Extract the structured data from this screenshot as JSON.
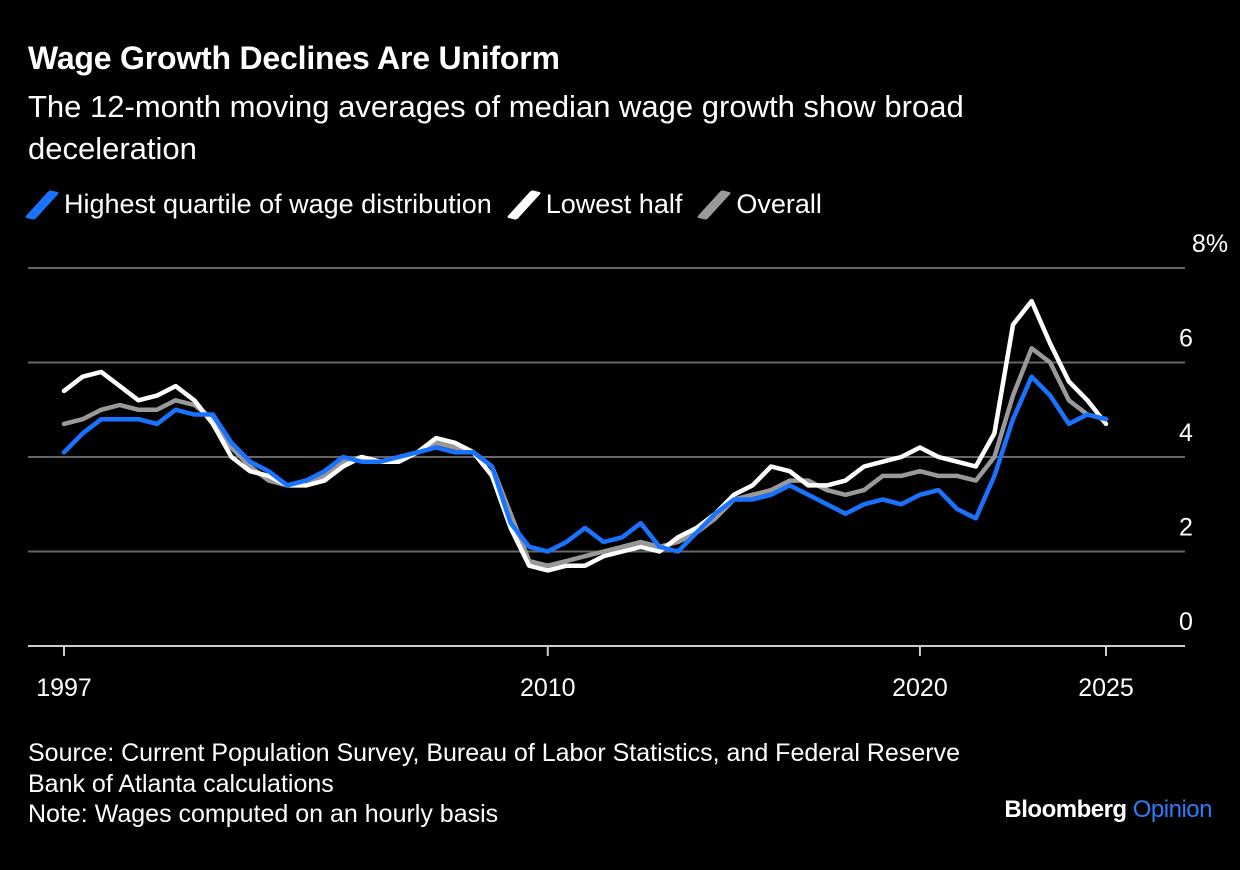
{
  "title": "Wage Growth Declines Are Uniform",
  "subtitle": "The 12-month moving averages of median wage growth show broad deceleration",
  "source": "Source: Current Population Survey, Bureau of Labor Statistics, and Federal Reserve Bank of Atlanta calculations",
  "note": "Note: Wages computed on an hourly basis",
  "brand": {
    "name": "Bloomberg",
    "product": "Opinion"
  },
  "colors": {
    "background": "#000000",
    "highest": "#1a73ff",
    "lowest": "#ffffff",
    "overall": "#999999",
    "grid": "#666666"
  },
  "chart_data": {
    "type": "line",
    "title": "Wage Growth Declines Are Uniform",
    "ylabel": "",
    "xlabel": "",
    "ylim": [
      0,
      8
    ],
    "xlim": [
      1996,
      2027
    ],
    "y_ticks": [
      "0",
      "2",
      "4",
      "6",
      "8%"
    ],
    "x_ticks": [
      "1997",
      "2010",
      "2020",
      "2025"
    ],
    "x_tick_values": [
      1997,
      2010,
      2020,
      2025
    ],
    "legend_position": "top-left",
    "series": [
      {
        "name": "Overall",
        "color": "#999999",
        "x": [
          1997.0,
          1997.5,
          1998.0,
          1998.5,
          1999.0,
          1999.5,
          2000.0,
          2000.5,
          2001.0,
          2001.5,
          2002.0,
          2002.5,
          2003.0,
          2003.5,
          2004.0,
          2004.5,
          2005.0,
          2005.5,
          2006.0,
          2006.5,
          2007.0,
          2007.5,
          2008.0,
          2008.5,
          2009.0,
          2009.5,
          2010.0,
          2010.5,
          2011.0,
          2011.5,
          2012.0,
          2012.5,
          2013.0,
          2013.5,
          2014.0,
          2014.5,
          2015.0,
          2015.5,
          2016.0,
          2016.5,
          2017.0,
          2017.5,
          2018.0,
          2018.5,
          2019.0,
          2019.5,
          2020.0,
          2020.5,
          2021.0,
          2021.5,
          2022.0,
          2022.5,
          2023.0,
          2023.5,
          2024.0,
          2024.5,
          2025.0
        ],
        "values": [
          4.7,
          4.8,
          5.0,
          5.1,
          5.0,
          5.0,
          5.2,
          5.1,
          4.8,
          4.2,
          3.8,
          3.5,
          3.4,
          3.5,
          3.6,
          3.9,
          4.0,
          3.9,
          4.0,
          4.1,
          4.3,
          4.2,
          4.1,
          3.8,
          2.8,
          1.8,
          1.7,
          1.8,
          1.9,
          2.0,
          2.1,
          2.2,
          2.1,
          2.2,
          2.4,
          2.7,
          3.1,
          3.2,
          3.3,
          3.5,
          3.5,
          3.3,
          3.2,
          3.3,
          3.6,
          3.6,
          3.7,
          3.6,
          3.6,
          3.5,
          4.0,
          5.3,
          6.3,
          6.0,
          5.2,
          4.9,
          4.8
        ]
      },
      {
        "name": "Lowest half",
        "color": "#ffffff",
        "x": [
          1997.0,
          1997.5,
          1998.0,
          1998.5,
          1999.0,
          1999.5,
          2000.0,
          2000.5,
          2001.0,
          2001.5,
          2002.0,
          2002.5,
          2003.0,
          2003.5,
          2004.0,
          2004.5,
          2005.0,
          2005.5,
          2006.0,
          2006.5,
          2007.0,
          2007.5,
          2008.0,
          2008.5,
          2009.0,
          2009.5,
          2010.0,
          2010.5,
          2011.0,
          2011.5,
          2012.0,
          2012.5,
          2013.0,
          2013.5,
          2014.0,
          2014.5,
          2015.0,
          2015.5,
          2016.0,
          2016.5,
          2017.0,
          2017.5,
          2018.0,
          2018.5,
          2019.0,
          2019.5,
          2020.0,
          2020.5,
          2021.0,
          2021.5,
          2022.0,
          2022.5,
          2023.0,
          2023.5,
          2024.0,
          2024.5,
          2025.0
        ],
        "values": [
          5.4,
          5.7,
          5.8,
          5.5,
          5.2,
          5.3,
          5.5,
          5.2,
          4.7,
          4.0,
          3.7,
          3.6,
          3.4,
          3.4,
          3.5,
          3.8,
          4.0,
          3.9,
          3.9,
          4.1,
          4.4,
          4.3,
          4.1,
          3.6,
          2.5,
          1.7,
          1.6,
          1.7,
          1.7,
          1.9,
          2.0,
          2.1,
          2.0,
          2.3,
          2.5,
          2.8,
          3.2,
          3.4,
          3.8,
          3.7,
          3.4,
          3.4,
          3.5,
          3.8,
          3.9,
          4.0,
          4.2,
          4.0,
          3.9,
          3.8,
          4.5,
          6.8,
          7.3,
          6.4,
          5.6,
          5.2,
          4.7
        ]
      },
      {
        "name": "Highest quartile of wage distribution",
        "color": "#1a73ff",
        "x": [
          1997.0,
          1997.5,
          1998.0,
          1998.5,
          1999.0,
          1999.5,
          2000.0,
          2000.5,
          2001.0,
          2001.5,
          2002.0,
          2002.5,
          2003.0,
          2003.5,
          2004.0,
          2004.5,
          2005.0,
          2005.5,
          2006.0,
          2006.5,
          2007.0,
          2007.5,
          2008.0,
          2008.5,
          2009.0,
          2009.5,
          2010.0,
          2010.5,
          2011.0,
          2011.5,
          2012.0,
          2012.5,
          2013.0,
          2013.5,
          2014.0,
          2014.5,
          2015.0,
          2015.5,
          2016.0,
          2016.5,
          2017.0,
          2017.5,
          2018.0,
          2018.5,
          2019.0,
          2019.5,
          2020.0,
          2020.5,
          2021.0,
          2021.5,
          2022.0,
          2022.5,
          2023.0,
          2023.5,
          2024.0,
          2024.5,
          2025.0
        ],
        "values": [
          4.1,
          4.5,
          4.8,
          4.8,
          4.8,
          4.7,
          5.0,
          4.9,
          4.9,
          4.3,
          3.9,
          3.7,
          3.4,
          3.5,
          3.7,
          4.0,
          3.9,
          3.9,
          4.0,
          4.1,
          4.2,
          4.1,
          4.1,
          3.8,
          2.6,
          2.1,
          2.0,
          2.2,
          2.5,
          2.2,
          2.3,
          2.6,
          2.1,
          2.0,
          2.4,
          2.8,
          3.1,
          3.1,
          3.2,
          3.4,
          3.2,
          3.0,
          2.8,
          3.0,
          3.1,
          3.0,
          3.2,
          3.3,
          2.9,
          2.7,
          3.6,
          4.8,
          5.7,
          5.3,
          4.7,
          4.9,
          4.8
        ]
      }
    ]
  }
}
